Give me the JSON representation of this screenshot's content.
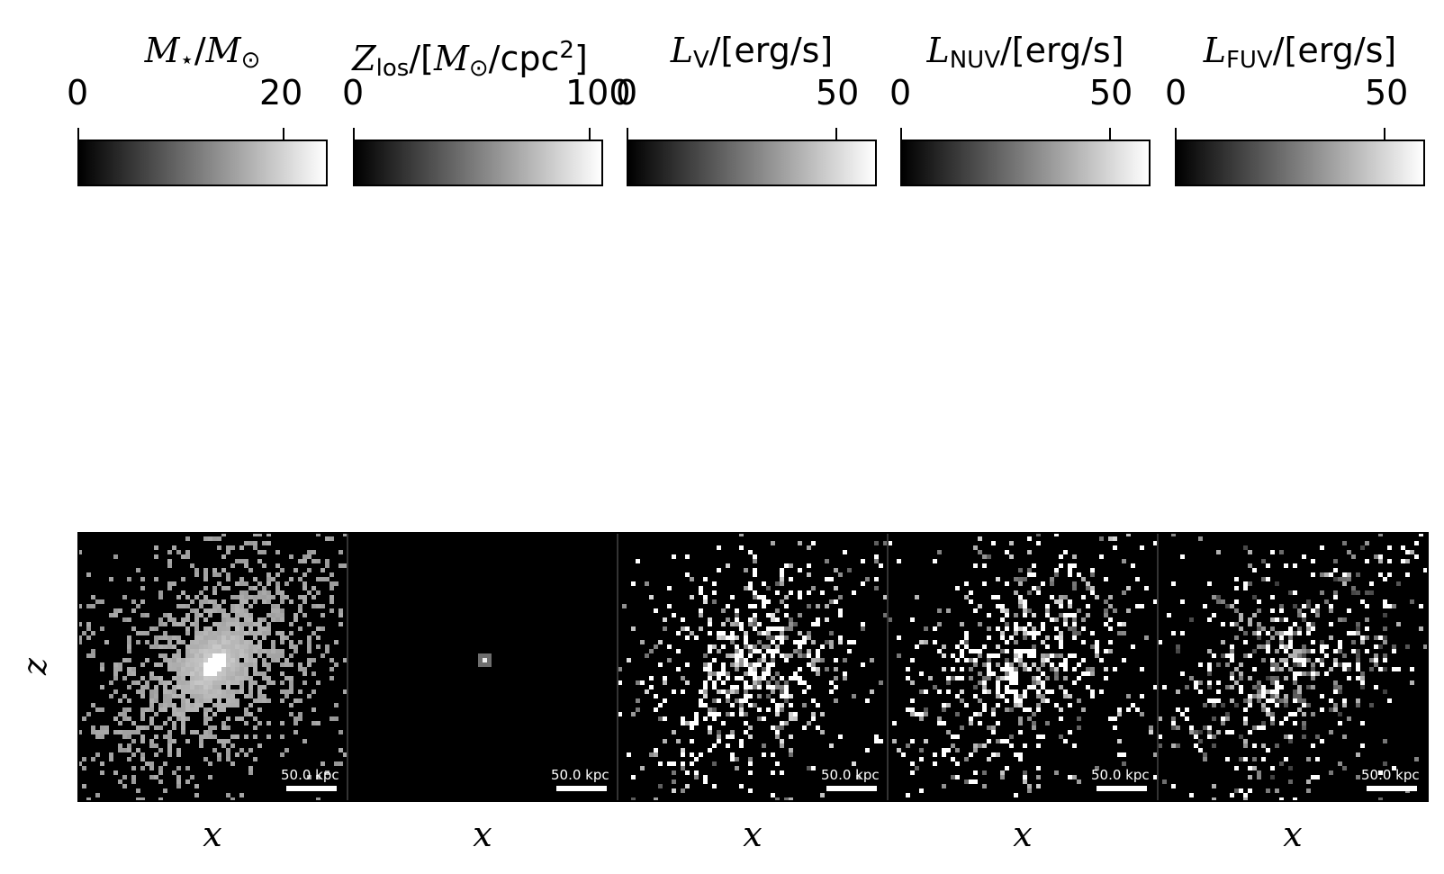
{
  "chart_data": [
    {
      "type": "heatmap",
      "colorbar_label": {
        "var": "M",
        "sub": "⋆",
        "rest": "/",
        "var2": "M",
        "sub2": "⊙"
      },
      "colorbar_ticks": [
        "0",
        "20"
      ],
      "vmin": 0,
      "vmax": 24,
      "pattern": "diffuse",
      "xlabel": "x",
      "ylabel": "z",
      "scale_label": "50.0 kpc"
    },
    {
      "type": "heatmap",
      "colorbar_label": {
        "var": "Z",
        "sub": "los",
        "rest": "/[",
        "var2": "M",
        "sub2": "⊙",
        "rest2": "/cpc",
        "sup": "2",
        "end": "]"
      },
      "colorbar_ticks": [
        "0",
        "100"
      ],
      "vmin": 0,
      "vmax": 105,
      "pattern": "point",
      "xlabel": "x",
      "scale_label": "50.0 kpc"
    },
    {
      "type": "heatmap",
      "colorbar_label": {
        "var": "L",
        "sub": "V",
        "rest": "/[erg/s]"
      },
      "colorbar_ticks": [
        "0",
        "50"
      ],
      "vmin": 0,
      "vmax": 60,
      "pattern": "sparse",
      "xlabel": "x",
      "scale_label": "50.0 kpc"
    },
    {
      "type": "heatmap",
      "colorbar_label": {
        "var": "L",
        "sub": "NUV",
        "rest": "/[erg/s]"
      },
      "colorbar_ticks": [
        "0",
        "50"
      ],
      "vmin": 0,
      "vmax": 60,
      "pattern": "sparse",
      "xlabel": "x",
      "scale_label": "50.0 kpc"
    },
    {
      "type": "heatmap",
      "colorbar_label": {
        "var": "L",
        "sub": "FUV",
        "rest": "/[erg/s]"
      },
      "colorbar_ticks": [
        "0",
        "50"
      ],
      "vmin": 0,
      "vmax": 60,
      "pattern": "sparse",
      "xlabel": "x",
      "scale_label": "50.0 kpc"
    }
  ]
}
